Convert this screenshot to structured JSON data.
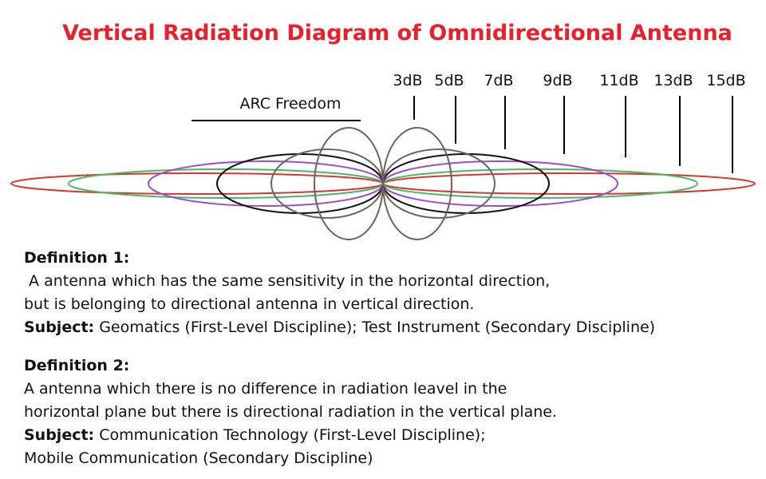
{
  "title": "Vertical Radiation Diagram of Omnidirectional Antenna",
  "diagram": {
    "arc_label": "ARC Freedom",
    "gain_labels": [
      "3dB",
      "5dB",
      "7dB",
      "9dB",
      "11dB",
      "13dB",
      "15dB"
    ]
  },
  "definitions": [
    {
      "heading": "Definition 1:",
      "lines": [
        " A antenna which has the same sensitivity in the horizontal direction,",
        "but is belonging to directional antenna in vertical direction."
      ],
      "subject_label": "Subject:",
      "subject_lines": [
        " Geomatics (First-Level Discipline); Test Instrument (Secondary Discipline)"
      ]
    },
    {
      "heading": "Definition 2:",
      "lines": [
        "A antenna which there is no difference in radiation leavel in the",
        "horizontal plane but there is directional radiation in the vertical plane."
      ],
      "subject_label": "Subject:",
      "subject_lines": [
        " Communication Technology (First-Level Discipline);",
        "Mobile Communication (Secondary Discipline)"
      ]
    }
  ]
}
